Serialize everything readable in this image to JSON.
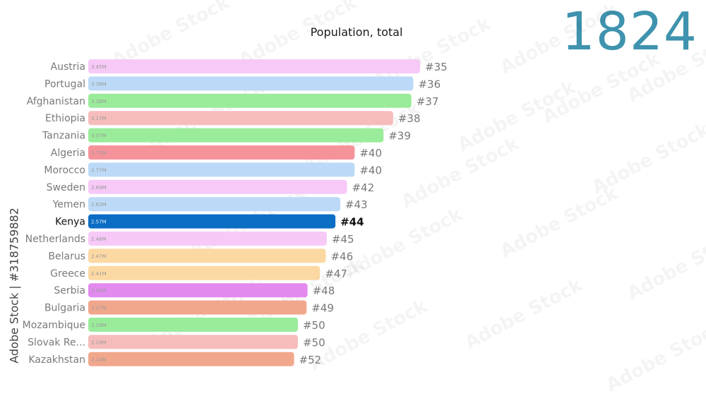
{
  "header": {
    "title": "Population, total",
    "year": "1824"
  },
  "credit": "Adobe Stock | #318759882",
  "watermark": "Adobe Stock",
  "chart_data": {
    "type": "bar",
    "orientation": "horizontal",
    "title": "Population, total",
    "year": "1824",
    "highlight": "Kenya",
    "categories": [
      "Austria",
      "Portugal",
      "Afghanistan",
      "Ethiopia",
      "Tanzania",
      "Algeria",
      "Morocco",
      "Sweden",
      "Yemen",
      "Kenya",
      "Netherlands",
      "Belarus",
      "Greece",
      "Serbia",
      "Bulgaria",
      "Mozambique",
      "Slovak Re...",
      "Kazakhstan"
    ],
    "values": [
      3.45,
      3.38,
      3.36,
      3.17,
      3.07,
      2.77,
      2.77,
      2.69,
      2.62,
      2.57,
      2.48,
      2.47,
      2.41,
      2.28,
      2.27,
      2.18,
      2.18,
      2.14
    ],
    "value_labels": [
      "3.45M",
      "3.38M",
      "3.36M",
      "3.17M",
      "3.07M",
      "2.77M",
      "2.77M",
      "2.69M",
      "2.62M",
      "2.57M",
      "2.48M",
      "2.47M",
      "2.41M",
      "2.28M",
      "2.27M",
      "2.18M",
      "2.18M",
      "2.14M"
    ],
    "ranks": [
      "#35",
      "#36",
      "#37",
      "#38",
      "#39",
      "#40",
      "#40",
      "#42",
      "#43",
      "#44",
      "#45",
      "#46",
      "#47",
      "#48",
      "#49",
      "#50",
      "#50",
      "#52"
    ],
    "colors": [
      "#f6c9f7",
      "#bcdaf7",
      "#9aec9a",
      "#f6bcbc",
      "#9aec9a",
      "#f5939b",
      "#bcdaf7",
      "#f6c9f7",
      "#bcdaf7",
      "#0b6dc4",
      "#f6c9f7",
      "#fcd9a3",
      "#fcd9a3",
      "#e38aef",
      "#f1a78c",
      "#9aec9a",
      "#f6bcbc",
      "#f1a78c"
    ]
  }
}
